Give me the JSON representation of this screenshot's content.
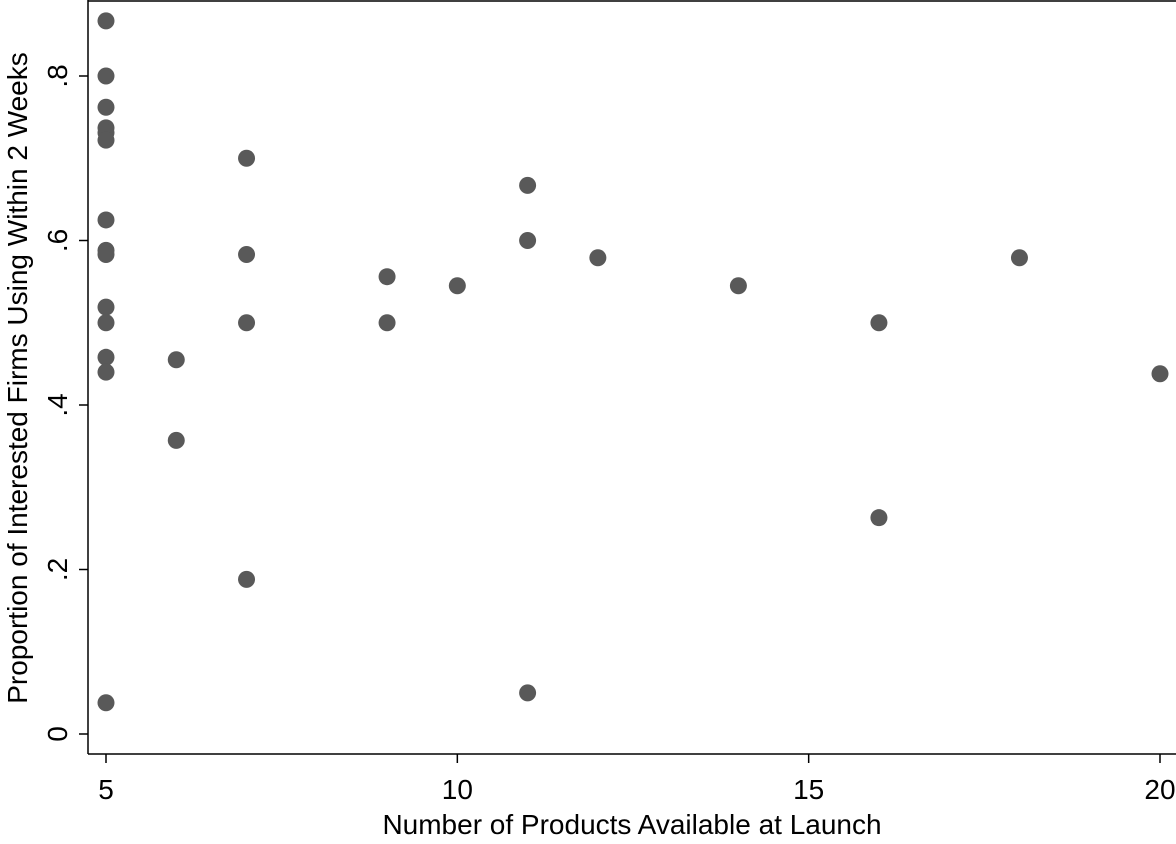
{
  "chart_data": {
    "type": "scatter",
    "title": "",
    "xlabel": "Number of Products Available at Launch",
    "ylabel": "Proportion of Interested Firms Using Within 2 Weeks",
    "xlim": [
      5,
      20
    ],
    "ylim": [
      0,
      0.87
    ],
    "xticks": [
      {
        "value": 5,
        "label": "5"
      },
      {
        "value": 10,
        "label": "10"
      },
      {
        "value": 15,
        "label": "15"
      },
      {
        "value": 20,
        "label": "20"
      }
    ],
    "yticks": [
      {
        "value": 0,
        "label": "0"
      },
      {
        "value": 0.2,
        "label": ".2"
      },
      {
        "value": 0.4,
        "label": ".4"
      },
      {
        "value": 0.6,
        "label": ".6"
      },
      {
        "value": 0.8,
        "label": ".8"
      }
    ],
    "grid": false,
    "legend": "none",
    "marker_color": "#595959",
    "axis_color": "#000000",
    "points": [
      {
        "x": 5,
        "y": 0.867
      },
      {
        "x": 5,
        "y": 0.8
      },
      {
        "x": 5,
        "y": 0.762
      },
      {
        "x": 5,
        "y": 0.737
      },
      {
        "x": 5,
        "y": 0.731
      },
      {
        "x": 5,
        "y": 0.722
      },
      {
        "x": 5,
        "y": 0.625
      },
      {
        "x": 5,
        "y": 0.588
      },
      {
        "x": 5,
        "y": 0.583
      },
      {
        "x": 5,
        "y": 0.519
      },
      {
        "x": 5,
        "y": 0.5
      },
      {
        "x": 5,
        "y": 0.458
      },
      {
        "x": 5,
        "y": 0.44
      },
      {
        "x": 5,
        "y": 0.038
      },
      {
        "x": 6,
        "y": 0.455
      },
      {
        "x": 6,
        "y": 0.357
      },
      {
        "x": 7,
        "y": 0.7
      },
      {
        "x": 7,
        "y": 0.583
      },
      {
        "x": 7,
        "y": 0.5
      },
      {
        "x": 7,
        "y": 0.188
      },
      {
        "x": 9,
        "y": 0.556
      },
      {
        "x": 9,
        "y": 0.5
      },
      {
        "x": 10,
        "y": 0.545
      },
      {
        "x": 11,
        "y": 0.667
      },
      {
        "x": 11,
        "y": 0.6
      },
      {
        "x": 11,
        "y": 0.05
      },
      {
        "x": 12,
        "y": 0.579
      },
      {
        "x": 14,
        "y": 0.545
      },
      {
        "x": 16,
        "y": 0.5
      },
      {
        "x": 16,
        "y": 0.263
      },
      {
        "x": 18,
        "y": 0.579
      },
      {
        "x": 20,
        "y": 0.438
      }
    ]
  }
}
